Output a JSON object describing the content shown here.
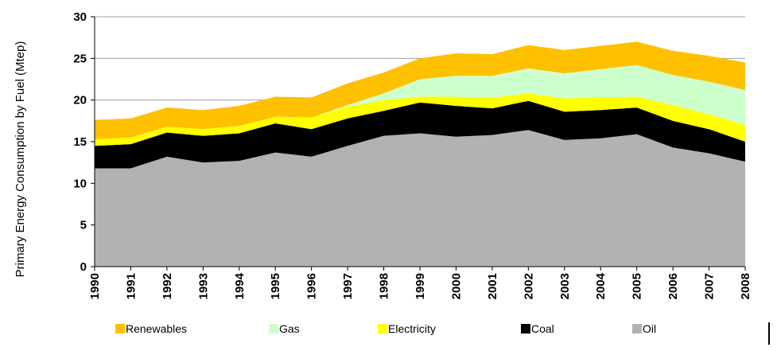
{
  "chart_data": {
    "type": "area",
    "stacked": true,
    "title": "",
    "xlabel": "",
    "ylabel": "Primary Energy Consumption by Fuel (Mtep)",
    "ylim": [
      0,
      30
    ],
    "yticks": [
      "0",
      "5",
      "10",
      "15",
      "20",
      "25",
      "30"
    ],
    "grid": "horizontal",
    "legend_position": "bottom",
    "categories": [
      "1990",
      "1991",
      "1992",
      "1993",
      "1994",
      "1995",
      "1996",
      "1997",
      "1998",
      "1999",
      "2000",
      "2001",
      "2002",
      "2003",
      "2004",
      "2005",
      "2006",
      "2007",
      "2008"
    ],
    "series": [
      {
        "name": "Oil",
        "color": "#b2b2b2",
        "values": [
          11.8,
          11.8,
          13.2,
          12.5,
          12.7,
          13.7,
          13.2,
          14.5,
          15.7,
          16.0,
          15.6,
          15.8,
          16.4,
          15.2,
          15.4,
          15.9,
          14.3,
          13.6,
          12.6
        ]
      },
      {
        "name": "Coal",
        "color": "#000000",
        "values": [
          2.7,
          2.9,
          2.9,
          3.2,
          3.3,
          3.5,
          3.3,
          3.3,
          3.0,
          3.7,
          3.7,
          3.2,
          3.5,
          3.4,
          3.4,
          3.2,
          3.2,
          2.9,
          2.4
        ]
      },
      {
        "name": "Electricity",
        "color": "#ffff00",
        "values": [
          0.8,
          0.8,
          0.7,
          0.8,
          0.9,
          0.8,
          1.4,
          1.4,
          1.3,
          0.7,
          1.1,
          1.3,
          0.9,
          1.6,
          1.5,
          1.3,
          1.9,
          1.8,
          2.0
        ]
      },
      {
        "name": "Gas",
        "color": "#ccffcc",
        "values": [
          0.0,
          0.0,
          0.0,
          0.0,
          0.0,
          0.0,
          0.0,
          0.2,
          0.8,
          2.1,
          2.5,
          2.6,
          3.0,
          3.0,
          3.4,
          3.8,
          3.6,
          3.9,
          4.2
        ]
      },
      {
        "name": "Renewables",
        "color": "#ffc000",
        "values": [
          2.3,
          2.3,
          2.3,
          2.3,
          2.4,
          2.4,
          2.4,
          2.6,
          2.5,
          2.5,
          2.7,
          2.6,
          2.8,
          2.8,
          2.8,
          2.8,
          2.9,
          3.1,
          3.3
        ]
      }
    ],
    "legend": [
      {
        "name": "Renewables",
        "color": "#ffc000"
      },
      {
        "name": "Gas",
        "color": "#ccffcc"
      },
      {
        "name": "Electricity",
        "color": "#ffff00"
      },
      {
        "name": "Coal",
        "color": "#000000"
      },
      {
        "name": "Oil",
        "color": "#b2b2b2"
      }
    ]
  }
}
